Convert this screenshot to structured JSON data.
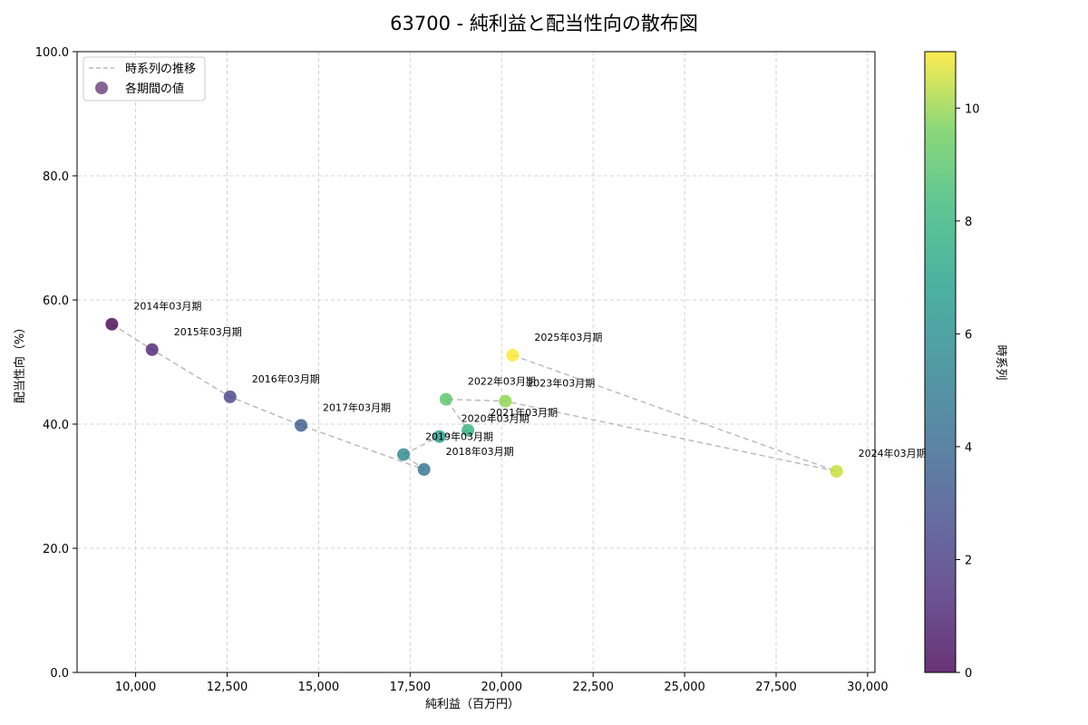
{
  "chart_data": {
    "type": "scatter",
    "title": "63700 - 純利益と配当性向の散布図",
    "xlabel": "純利益（百万円）",
    "ylabel": "配当性向（%）",
    "xlim": [
      8400,
      30200
    ],
    "ylim": [
      0,
      100
    ],
    "x_ticks": [
      10000,
      12500,
      15000,
      17500,
      20000,
      22500,
      25000,
      27500,
      30000
    ],
    "x_tick_labels": [
      "10,000",
      "12,500",
      "15,000",
      "17,500",
      "20,000",
      "22,500",
      "25,000",
      "27,500",
      "30,000"
    ],
    "y_ticks": [
      0,
      20,
      40,
      60,
      80,
      100
    ],
    "y_tick_labels": [
      "0.0",
      "20.0",
      "40.0",
      "60.0",
      "80.0",
      "100.0"
    ],
    "grid": true,
    "legend": {
      "placement": "top-left",
      "entries": [
        {
          "label": "時系列の推移",
          "kind": "dashed-line",
          "color": "#bbbbbb"
        },
        {
          "label": "各期間の値",
          "kind": "marker",
          "color": "#6a3d7a"
        }
      ]
    },
    "colorbar": {
      "label": "時系列",
      "range": [
        0,
        11
      ],
      "ticks": [
        0,
        2,
        4,
        6,
        8,
        10
      ],
      "tick_labels": [
        "0",
        "2",
        "4",
        "6",
        "8",
        "10"
      ],
      "colormap": "viridis"
    },
    "series": [
      {
        "points": [
          {
            "label": "2014年03月期",
            "x": 9350,
            "y": 56.1,
            "t": 0
          },
          {
            "label": "2015年03月期",
            "x": 10450,
            "y": 52.0,
            "t": 1
          },
          {
            "label": "2016年03月期",
            "x": 12580,
            "y": 44.4,
            "t": 2
          },
          {
            "label": "2017年03月期",
            "x": 14520,
            "y": 39.8,
            "t": 3
          },
          {
            "label": "2018年03月期",
            "x": 17880,
            "y": 32.7,
            "t": 4
          },
          {
            "label": "2019年03月期",
            "x": 17320,
            "y": 35.1,
            "t": 5
          },
          {
            "label": "2020年03月期",
            "x": 18300,
            "y": 38.0,
            "t": 6
          },
          {
            "label": "2021年03月期",
            "x": 19080,
            "y": 39.0,
            "t": 7
          },
          {
            "label": "2022年03月期",
            "x": 18480,
            "y": 44.0,
            "t": 8
          },
          {
            "label": "2023年03月期",
            "x": 20100,
            "y": 43.7,
            "t": 9
          },
          {
            "label": "2024年03月期",
            "x": 29150,
            "y": 32.4,
            "t": 10
          },
          {
            "label": "2025年03月期",
            "x": 20300,
            "y": 51.1,
            "t": 11
          }
        ]
      }
    ]
  }
}
